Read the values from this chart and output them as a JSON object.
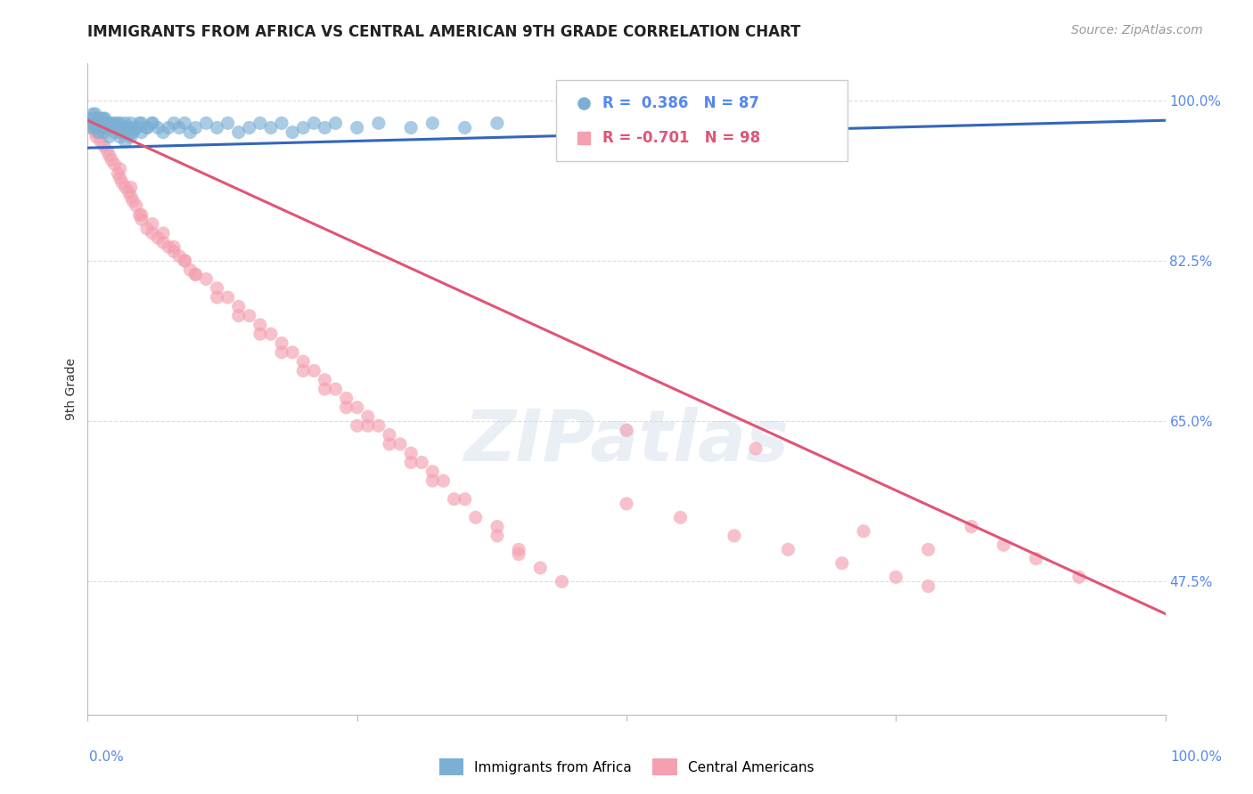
{
  "title": "IMMIGRANTS FROM AFRICA VS CENTRAL AMERICAN 9TH GRADE CORRELATION CHART",
  "source": "Source: ZipAtlas.com",
  "ylabel": "9th Grade",
  "yticks": [
    0.475,
    0.65,
    0.825,
    1.0
  ],
  "ytick_labels": [
    "47.5%",
    "65.0%",
    "82.5%",
    "100.0%"
  ],
  "watermark": "ZIPatlas",
  "legend_africa_label": "Immigrants from Africa",
  "legend_central_label": "Central Americans",
  "r_africa": 0.386,
  "n_africa": 87,
  "r_central": -0.701,
  "n_central": 98,
  "color_africa": "#7BAFD4",
  "color_central": "#F4A0B0",
  "color_africa_line": "#3366BB",
  "color_central_line": "#E05575",
  "color_tick_labels": "#5588EE",
  "xmin": 0.0,
  "xmax": 1.0,
  "ymin": 0.33,
  "ymax": 1.04,
  "background_color": "#FFFFFF",
  "grid_color": "#DDDDDD",
  "title_fontsize": 12,
  "source_fontsize": 10,
  "africa_x": [
    0.002,
    0.003,
    0.004,
    0.005,
    0.006,
    0.007,
    0.008,
    0.009,
    0.01,
    0.01,
    0.012,
    0.013,
    0.015,
    0.015,
    0.016,
    0.018,
    0.02,
    0.02,
    0.022,
    0.025,
    0.025,
    0.028,
    0.03,
    0.03,
    0.032,
    0.035,
    0.035,
    0.038,
    0.04,
    0.04,
    0.042,
    0.045,
    0.048,
    0.05,
    0.055,
    0.06,
    0.065,
    0.07,
    0.075,
    0.08,
    0.085,
    0.09,
    0.095,
    0.1,
    0.11,
    0.12,
    0.13,
    0.14,
    0.15,
    0.16,
    0.17,
    0.18,
    0.19,
    0.2,
    0.21,
    0.22,
    0.23,
    0.25,
    0.27,
    0.3,
    0.32,
    0.35,
    0.38,
    0.007,
    0.008,
    0.009,
    0.01,
    0.011,
    0.012,
    0.013,
    0.014,
    0.015,
    0.016,
    0.018,
    0.02,
    0.022,
    0.025,
    0.028,
    0.03,
    0.032,
    0.035,
    0.038,
    0.04,
    0.045,
    0.05,
    0.055,
    0.06
  ],
  "africa_y": [
    0.975,
    0.98,
    0.97,
    0.985,
    0.975,
    0.98,
    0.97,
    0.975,
    0.98,
    0.965,
    0.975,
    0.97,
    0.98,
    0.965,
    0.975,
    0.97,
    0.975,
    0.96,
    0.97,
    0.975,
    0.965,
    0.97,
    0.975,
    0.96,
    0.965,
    0.97,
    0.955,
    0.97,
    0.975,
    0.96,
    0.965,
    0.97,
    0.975,
    0.965,
    0.97,
    0.975,
    0.97,
    0.965,
    0.97,
    0.975,
    0.97,
    0.975,
    0.965,
    0.97,
    0.975,
    0.97,
    0.975,
    0.965,
    0.97,
    0.975,
    0.97,
    0.975,
    0.965,
    0.97,
    0.975,
    0.97,
    0.975,
    0.97,
    0.975,
    0.97,
    0.975,
    0.97,
    0.975,
    0.985,
    0.975,
    0.98,
    0.975,
    0.97,
    0.975,
    0.98,
    0.975,
    0.97,
    0.98,
    0.975,
    0.97,
    0.975,
    0.97,
    0.975,
    0.965,
    0.97,
    0.975,
    0.97,
    0.965,
    0.97,
    0.975,
    0.97,
    0.975
  ],
  "central_x": [
    0.003,
    0.005,
    0.007,
    0.008,
    0.01,
    0.012,
    0.015,
    0.018,
    0.02,
    0.022,
    0.025,
    0.028,
    0.03,
    0.032,
    0.035,
    0.038,
    0.04,
    0.042,
    0.045,
    0.048,
    0.05,
    0.055,
    0.06,
    0.065,
    0.07,
    0.075,
    0.08,
    0.085,
    0.09,
    0.095,
    0.1,
    0.11,
    0.12,
    0.13,
    0.14,
    0.15,
    0.16,
    0.17,
    0.18,
    0.19,
    0.2,
    0.21,
    0.22,
    0.23,
    0.24,
    0.25,
    0.26,
    0.27,
    0.28,
    0.29,
    0.3,
    0.31,
    0.32,
    0.33,
    0.35,
    0.38,
    0.4,
    0.25,
    0.03,
    0.04,
    0.05,
    0.06,
    0.07,
    0.08,
    0.09,
    0.1,
    0.12,
    0.14,
    0.16,
    0.18,
    0.2,
    0.22,
    0.24,
    0.26,
    0.28,
    0.3,
    0.32,
    0.34,
    0.36,
    0.38,
    0.4,
    0.42,
    0.44,
    0.5,
    0.55,
    0.6,
    0.65,
    0.7,
    0.75,
    0.78,
    0.82,
    0.85,
    0.88,
    0.92,
    0.72,
    0.78,
    0.62,
    0.5
  ],
  "central_y": [
    0.975,
    0.97,
    0.965,
    0.96,
    0.965,
    0.955,
    0.95,
    0.945,
    0.94,
    0.935,
    0.93,
    0.92,
    0.915,
    0.91,
    0.905,
    0.9,
    0.895,
    0.89,
    0.885,
    0.875,
    0.87,
    0.86,
    0.855,
    0.85,
    0.845,
    0.84,
    0.835,
    0.83,
    0.825,
    0.815,
    0.81,
    0.805,
    0.795,
    0.785,
    0.775,
    0.765,
    0.755,
    0.745,
    0.735,
    0.725,
    0.715,
    0.705,
    0.695,
    0.685,
    0.675,
    0.665,
    0.655,
    0.645,
    0.635,
    0.625,
    0.615,
    0.605,
    0.595,
    0.585,
    0.565,
    0.535,
    0.51,
    0.645,
    0.925,
    0.905,
    0.875,
    0.865,
    0.855,
    0.84,
    0.825,
    0.81,
    0.785,
    0.765,
    0.745,
    0.725,
    0.705,
    0.685,
    0.665,
    0.645,
    0.625,
    0.605,
    0.585,
    0.565,
    0.545,
    0.525,
    0.505,
    0.49,
    0.475,
    0.56,
    0.545,
    0.525,
    0.51,
    0.495,
    0.48,
    0.47,
    0.535,
    0.515,
    0.5,
    0.48,
    0.53,
    0.51,
    0.62,
    0.64
  ],
  "africa_trendline_x": [
    0.0,
    1.0
  ],
  "africa_trendline_y": [
    0.948,
    0.978
  ],
  "central_trendline_x": [
    0.0,
    1.0
  ],
  "central_trendline_y": [
    0.978,
    0.44
  ]
}
